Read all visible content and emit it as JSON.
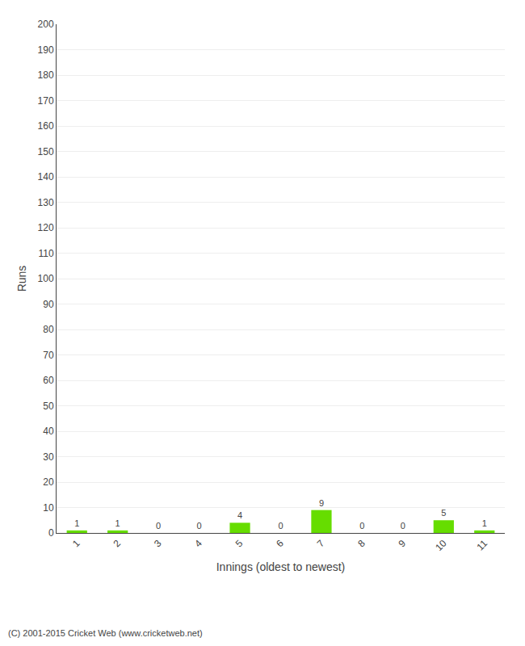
{
  "chart_data": {
    "type": "bar",
    "xlabel": "Innings (oldest to newest)",
    "ylabel": "Runs",
    "categories": [
      "1",
      "2",
      "3",
      "4",
      "5",
      "6",
      "7",
      "8",
      "9",
      "10",
      "11"
    ],
    "values": [
      1,
      1,
      0,
      0,
      4,
      0,
      9,
      0,
      0,
      5,
      1
    ],
    "color": "#66dd00",
    "ylim": [
      0,
      200
    ],
    "yticks": [
      0,
      10,
      20,
      30,
      40,
      50,
      60,
      70,
      80,
      90,
      100,
      110,
      120,
      130,
      140,
      150,
      160,
      170,
      180,
      190,
      200
    ],
    "grid": true,
    "data_labels": true,
    "annotations": [
      "(C) 2001-2015 Cricket Web (www.cricketweb.net)"
    ]
  }
}
